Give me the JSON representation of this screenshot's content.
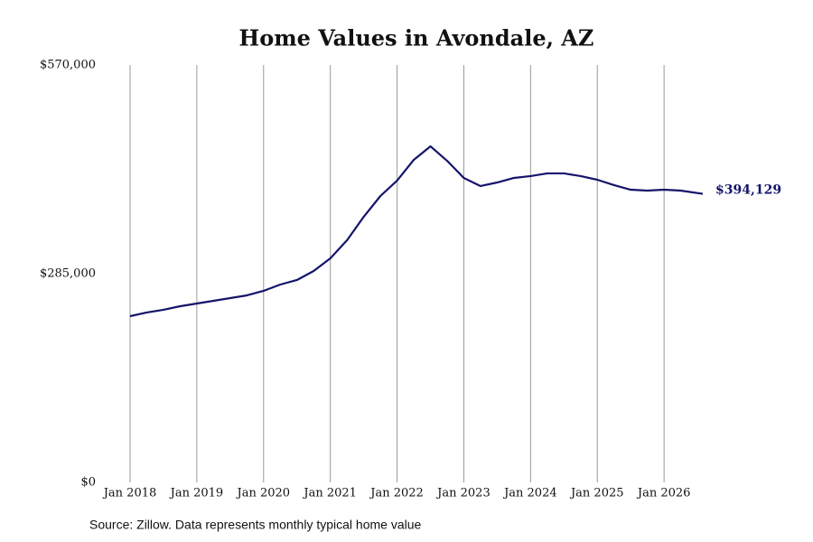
{
  "chart_data": {
    "type": "line",
    "title": "Home Values in Avondale, AZ",
    "source": "Source: Zillow. Data represents monthly typical home value",
    "x": [
      2018,
      2018.25,
      2018.5,
      2018.75,
      2019,
      2019.25,
      2019.5,
      2019.75,
      2020,
      2020.25,
      2020.5,
      2020.75,
      2021,
      2021.25,
      2021.5,
      2021.75,
      2022,
      2022.25,
      2022.5,
      2022.75,
      2023,
      2023.25,
      2023.5,
      2023.75,
      2024,
      2024.25,
      2024.5,
      2024.75,
      2025,
      2025.25,
      2025.5,
      2025.75,
      2026,
      2026.25,
      2026.58
    ],
    "series": [
      {
        "name": "Avondale, AZ",
        "color": "#14146b",
        "values": [
          227000,
          232000,
          235700,
          240600,
          244300,
          248000,
          251700,
          255400,
          261600,
          270200,
          276400,
          288700,
          306000,
          330700,
          362700,
          391100,
          412100,
          440500,
          459000,
          439200,
          415800,
          404700,
          409600,
          415800,
          418300,
          422000,
          422000,
          418300,
          413300,
          406000,
          399700,
          398500,
          399700,
          398500,
          394129
        ],
        "value_labels": [
          null,
          null,
          null,
          null,
          null,
          null,
          null,
          null,
          null,
          null,
          null,
          null,
          null,
          null,
          null,
          null,
          null,
          null,
          null,
          null,
          null,
          null,
          null,
          null,
          null,
          null,
          null,
          null,
          null,
          null,
          null,
          null,
          null,
          null,
          "$394,129"
        ]
      }
    ],
    "xlim": [
      2018,
      2026.58
    ],
    "xticks": [
      {
        "value": 2018,
        "label": "Jan 2018"
      },
      {
        "value": 2019,
        "label": "Jan 2019"
      },
      {
        "value": 2020,
        "label": "Jan 2020"
      },
      {
        "value": 2021,
        "label": "Jan 2021"
      },
      {
        "value": 2022,
        "label": "Jan 2022"
      },
      {
        "value": 2023,
        "label": "Jan 2023"
      },
      {
        "value": 2024,
        "label": "Jan 2024"
      },
      {
        "value": 2025,
        "label": "Jan 2025"
      },
      {
        "value": 2026,
        "label": "Jan 2026"
      }
    ],
    "ylim": [
      0,
      570000
    ],
    "yticks": [
      {
        "value": 0,
        "label": "$0"
      },
      {
        "value": 285000,
        "label": "$285,000"
      },
      {
        "value": 570000,
        "label": "$570,000"
      }
    ],
    "grid": "x"
  }
}
